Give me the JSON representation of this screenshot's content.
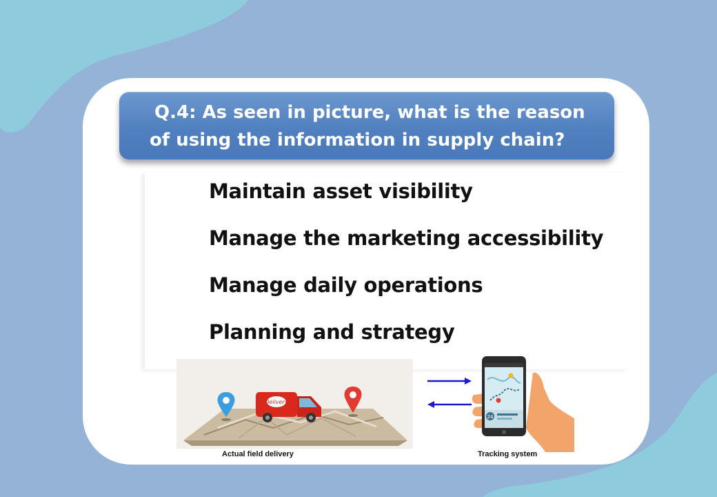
{
  "question": {
    "line1": "Q.4: As seen in picture, what is the reason",
    "line2": "of using the information in supply chain?"
  },
  "options": [
    "Maintain asset visibility",
    "Manage the marketing accessibility",
    "Manage daily operations",
    "Planning and strategy"
  ],
  "images": {
    "delivery_caption": "Actual field delivery",
    "tracking_caption": "Tracking system",
    "van_sign": "Delivery",
    "phone_badge": "24"
  },
  "colors": {
    "background": "#95b3d7",
    "accent_blob": "#8ecbdc",
    "banner": "#5180c0",
    "arrow": "#1a1acc"
  }
}
